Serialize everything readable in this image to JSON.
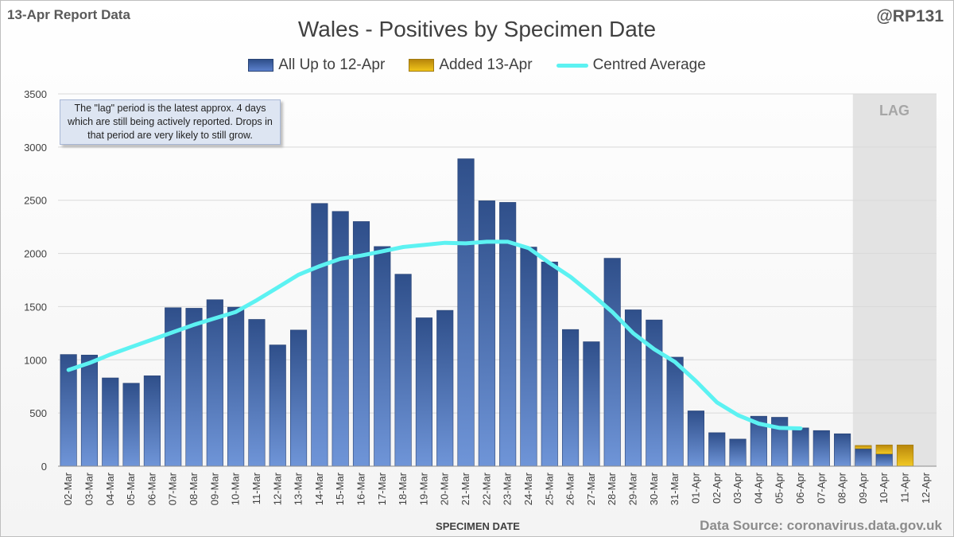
{
  "header": {
    "report_label": "13-Apr Report Data",
    "author": "@RP131",
    "source": "Data Source: coronavirus.data.gov.uk"
  },
  "colors": {
    "bar_blue_top": "#2f4f8a",
    "bar_blue_bottom": "#6f95d8",
    "bar_gold_top": "#b8860b",
    "bar_gold_bottom": "#f2c924",
    "average_line": "#5cf2f2",
    "lag_shade": "#e3e3e3"
  },
  "chart_data": {
    "type": "bar",
    "title": "Wales - Positives by Specimen Date",
    "xlabel": "SPECIMEN DATE",
    "ylabel": "",
    "ylim": [
      0,
      3500
    ],
    "yticks": [
      0,
      500,
      1000,
      1500,
      2000,
      2500,
      3000,
      3500
    ],
    "legend_position": "top-center",
    "grid": true,
    "categories": [
      "02-Mar",
      "03-Mar",
      "04-Mar",
      "05-Mar",
      "06-Mar",
      "07-Mar",
      "08-Mar",
      "09-Mar",
      "10-Mar",
      "11-Mar",
      "12-Mar",
      "13-Mar",
      "14-Mar",
      "15-Mar",
      "16-Mar",
      "17-Mar",
      "18-Mar",
      "19-Mar",
      "20-Mar",
      "21-Mar",
      "22-Mar",
      "23-Mar",
      "24-Mar",
      "25-Mar",
      "26-Mar",
      "27-Mar",
      "28-Mar",
      "29-Mar",
      "30-Mar",
      "31-Mar",
      "01-Apr",
      "02-Apr",
      "03-Apr",
      "04-Apr",
      "05-Apr",
      "06-Apr",
      "07-Apr",
      "08-Apr",
      "09-Apr",
      "10-Apr",
      "11-Apr",
      "12-Apr"
    ],
    "series": [
      {
        "name": "All Up to 12-Apr",
        "type": "bar",
        "values": [
          1050,
          1045,
          830,
          780,
          850,
          1490,
          1485,
          1565,
          1495,
          1380,
          1140,
          1280,
          2470,
          2395,
          2300,
          2065,
          1805,
          1395,
          1465,
          2890,
          2495,
          2480,
          2060,
          1920,
          1285,
          1170,
          1955,
          1470,
          1375,
          1025,
          520,
          315,
          255,
          470,
          460,
          360,
          335,
          305,
          165,
          115,
          0,
          0
        ]
      },
      {
        "name": "Added 13-Apr",
        "type": "bar",
        "values": [
          0,
          0,
          0,
          0,
          0,
          0,
          0,
          0,
          0,
          0,
          0,
          0,
          0,
          0,
          0,
          0,
          0,
          0,
          0,
          0,
          0,
          0,
          0,
          0,
          0,
          0,
          0,
          0,
          0,
          0,
          0,
          0,
          0,
          0,
          0,
          0,
          0,
          0,
          30,
          85,
          200,
          0
        ]
      },
      {
        "name": "Centred Average",
        "type": "line",
        "values": [
          905,
          970,
          1050,
          1120,
          1190,
          1260,
          1330,
          1390,
          1450,
          1560,
          1680,
          1800,
          1880,
          1950,
          1980,
          2020,
          2060,
          2080,
          2100,
          2095,
          2110,
          2110,
          2050,
          1910,
          1780,
          1620,
          1450,
          1250,
          1100,
          980,
          800,
          600,
          480,
          400,
          360,
          355,
          null,
          null,
          null,
          null,
          null,
          null
        ]
      }
    ],
    "lag_region": {
      "label": "LAG",
      "from": "09-Apr",
      "to": "12-Apr"
    },
    "annotation": "The \"lag\" period is the latest approx. 4 days which are still being actively reported. Drops in that period are very likely to still grow."
  }
}
